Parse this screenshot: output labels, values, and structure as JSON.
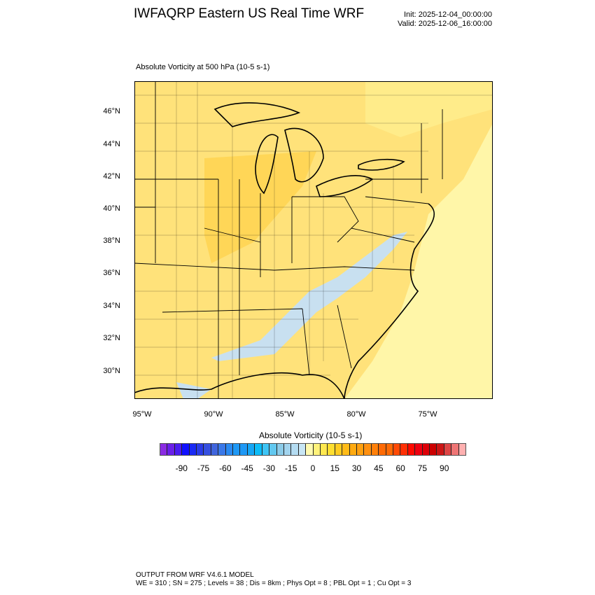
{
  "header": {
    "title": "IWFAQRP Eastern US Real Time WRF",
    "init": "Init: 2025-12-04_00:00:00",
    "valid": "Valid: 2025-12-06_16:00:00"
  },
  "plot": {
    "subtitle": "Absolute Vorticity at 500 hPa   (10-5 s-1)",
    "lat_labels": [
      "46°N",
      "44°N",
      "42°N",
      "40°N",
      "38°N",
      "36°N",
      "34°N",
      "32°N",
      "30°N"
    ],
    "lon_labels": [
      "95°W",
      "90°W",
      "85°W",
      "80°W",
      "75°W"
    ]
  },
  "colorbar": {
    "title": "Absolute Vorticity  (10-5 s-1)",
    "labels": [
      "-90",
      "-75",
      "-60",
      "-45",
      "-30",
      "-15",
      "0",
      "15",
      "30",
      "45",
      "60",
      "75",
      "90"
    ],
    "range": [
      -105,
      105
    ],
    "step": 5,
    "colors": [
      "#8a2be2",
      "#6a1fe8",
      "#4b1cf0",
      "#1010ff",
      "#1a2af5",
      "#2a3ce8",
      "#3650e0",
      "#4065dd",
      "#3a78e8",
      "#2a8af2",
      "#1e98f5",
      "#15a6f5",
      "#0cbcf8",
      "#3ec4f5",
      "#62c8f0",
      "#8ccbe8",
      "#a2d4ee",
      "#b4dcf2",
      "#c8e6f5",
      "#fffab0",
      "#fff27a",
      "#ffe84f",
      "#ffde30",
      "#ffcc20",
      "#ffbb18",
      "#ffaa10",
      "#ffa010",
      "#ff9010",
      "#ff800a",
      "#ff6a05",
      "#ff4a05",
      "#ff3005",
      "#ff0a00",
      "#ee0010",
      "#dd0008",
      "#cc0000",
      "#cc1515",
      "#dd4545",
      "#ee7575",
      "#ffb0b0"
    ]
  },
  "footer": {
    "line1": "OUTPUT FROM WRF V4.6.1 MODEL",
    "line2": "WE = 310 ; SN = 275 ; Levels = 38 ; Dis = 8km ; Phys Opt = 8 ; PBL Opt = 1 ; Cu Opt = 3"
  }
}
